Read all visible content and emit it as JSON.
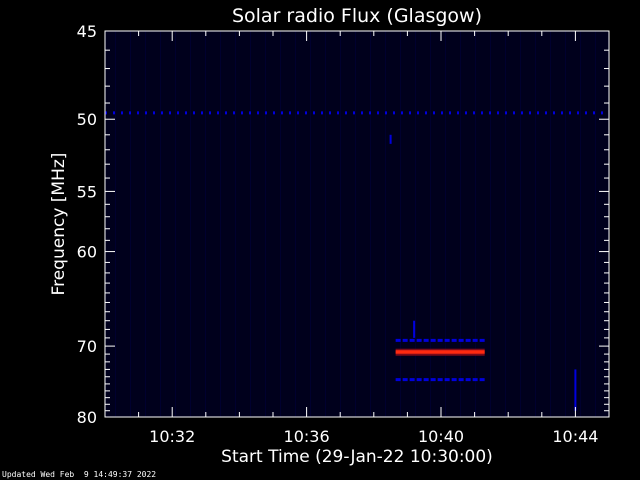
{
  "colors": {
    "background": "#000000",
    "plot_background": "#00001c",
    "axes": "#ffffff",
    "text": "#ffffff",
    "low_intensity": "#0000dd",
    "high_intensity_core": "#ff2a10",
    "high_intensity_edge": "#7a0a1a"
  },
  "chart_data": {
    "type": "heatmap",
    "title": "Solar radio Flux (Glasgow)",
    "xlabel": "Start Time (29-Jan-22 10:30:00)",
    "ylabel": "Frequency [MHz]",
    "x_unit": "minutes after 10:30:00",
    "xlim": [
      0,
      15
    ],
    "y_scale": "reciprocal",
    "ylim": [
      45,
      80
    ],
    "x_ticks": [
      {
        "value": 2,
        "label": "10:32"
      },
      {
        "value": 6,
        "label": "10:36"
      },
      {
        "value": 10,
        "label": "10:40"
      },
      {
        "value": 14,
        "label": "10:44"
      }
    ],
    "y_ticks": [
      {
        "value": 45,
        "label": "45"
      },
      {
        "value": 50,
        "label": "50"
      },
      {
        "value": 55,
        "label": "55"
      },
      {
        "value": 60,
        "label": "60"
      },
      {
        "value": 70,
        "label": "70"
      },
      {
        "value": 80,
        "label": "80"
      }
    ],
    "features": [
      {
        "kind": "band",
        "frequency": 49.6,
        "from": 0,
        "to": 15,
        "intensity": "low"
      },
      {
        "kind": "band",
        "frequency": 69.3,
        "from": 8.65,
        "to": 11.3,
        "intensity": "low"
      },
      {
        "kind": "band",
        "frequency": 70.7,
        "from": 8.65,
        "to": 11.3,
        "intensity": "high"
      },
      {
        "kind": "band",
        "frequency": 74.4,
        "from": 8.65,
        "to": 11.3,
        "intensity": "low"
      },
      {
        "kind": "spike",
        "time": 8.5,
        "frequency_from": 51.0,
        "frequency_to": 51.6,
        "intensity": "low"
      },
      {
        "kind": "spike",
        "time": 9.2,
        "frequency_from": 67.0,
        "frequency_to": 69.0,
        "intensity": "low"
      },
      {
        "kind": "spike",
        "time": 14.0,
        "frequency_from": 73.0,
        "frequency_to": 79.0,
        "intensity": "low"
      }
    ]
  },
  "footer": {
    "updated_text": "Updated Wed Feb  9 14:49:37 2022"
  }
}
